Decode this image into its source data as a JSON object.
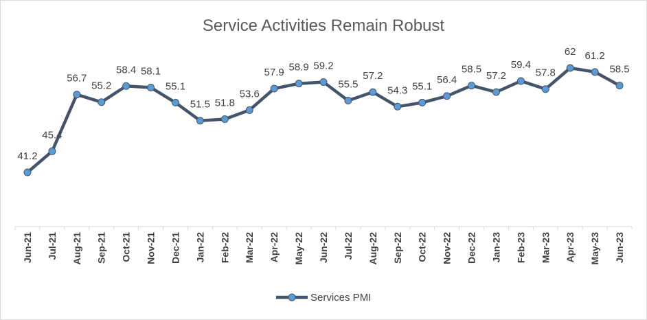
{
  "chart_data": {
    "type": "line",
    "title": "Service Activities Remain Robust",
    "xlabel": "",
    "ylabel": "",
    "ylim": [
      30,
      65
    ],
    "grid": false,
    "legend_position": "bottom",
    "categories": [
      "Jun-21",
      "Jul-21",
      "Aug-21",
      "Sep-21",
      "Oct-21",
      "Nov-21",
      "Dec-21",
      "Jan-22",
      "Feb-22",
      "Mar-22",
      "Apr-22",
      "May-22",
      "Jun-22",
      "Jul-22",
      "Aug-22",
      "Sep-22",
      "Oct-22",
      "Nov-22",
      "Dec-22",
      "Jan-23",
      "Feb-23",
      "Mar-23",
      "Apr-23",
      "May-23",
      "Jun-23"
    ],
    "series": [
      {
        "name": "Services PMI",
        "values": [
          41.2,
          45.4,
          56.7,
          55.2,
          58.4,
          58.1,
          55.1,
          51.5,
          51.8,
          53.6,
          57.9,
          58.9,
          59.2,
          55.5,
          57.2,
          54.3,
          55.1,
          56.4,
          58.5,
          57.2,
          59.4,
          57.8,
          62,
          61.2,
          58.5
        ],
        "color": "#44546a",
        "marker_color": "#5b9bd5"
      }
    ]
  }
}
